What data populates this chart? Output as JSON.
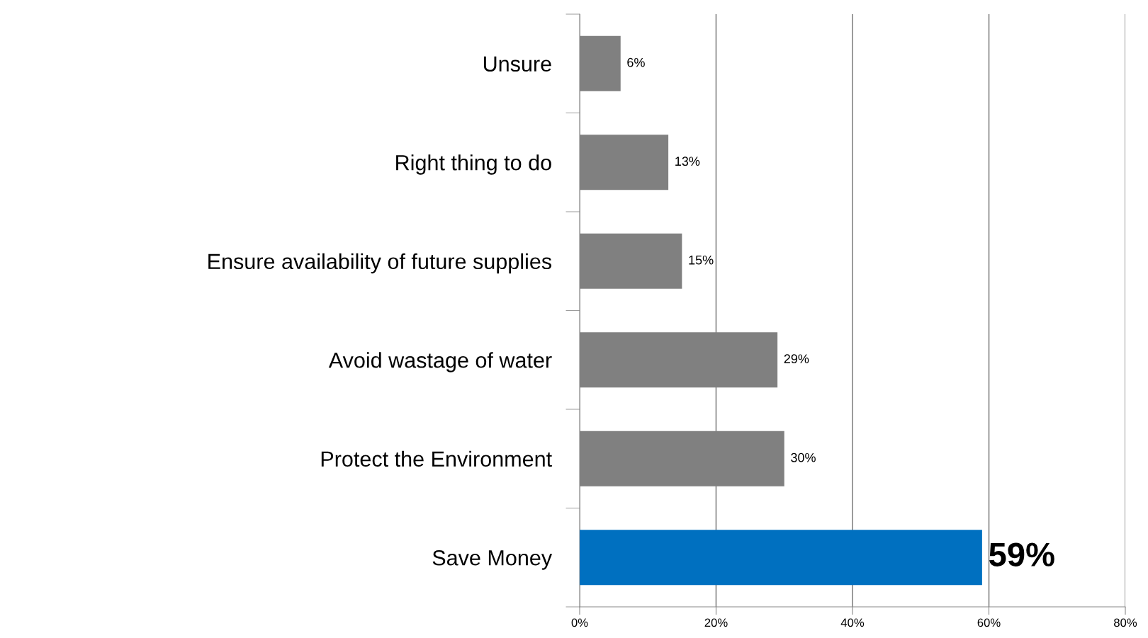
{
  "chart_data": {
    "type": "bar",
    "orientation": "horizontal",
    "categories": [
      "Unsure",
      "Right thing to do",
      "Ensure availability of future supplies",
      "Avoid wastage of water",
      "Protect the Environment",
      "Save Money"
    ],
    "values": [
      6,
      13,
      15,
      29,
      30,
      59
    ],
    "colors": [
      "#808080",
      "#808080",
      "#808080",
      "#808080",
      "#808080",
      "#0070c0"
    ],
    "value_labels": [
      "6%",
      "13%",
      "15%",
      "29%",
      "30%",
      "59%"
    ],
    "xlim": [
      0,
      80
    ],
    "xticks": [
      {
        "value": 0,
        "label": "0%"
      },
      {
        "value": 20,
        "label": "20%"
      },
      {
        "value": 40,
        "label": "40%"
      },
      {
        "value": 60,
        "label": "60%"
      },
      {
        "value": 80,
        "label": "80%"
      }
    ],
    "grid": "x"
  }
}
